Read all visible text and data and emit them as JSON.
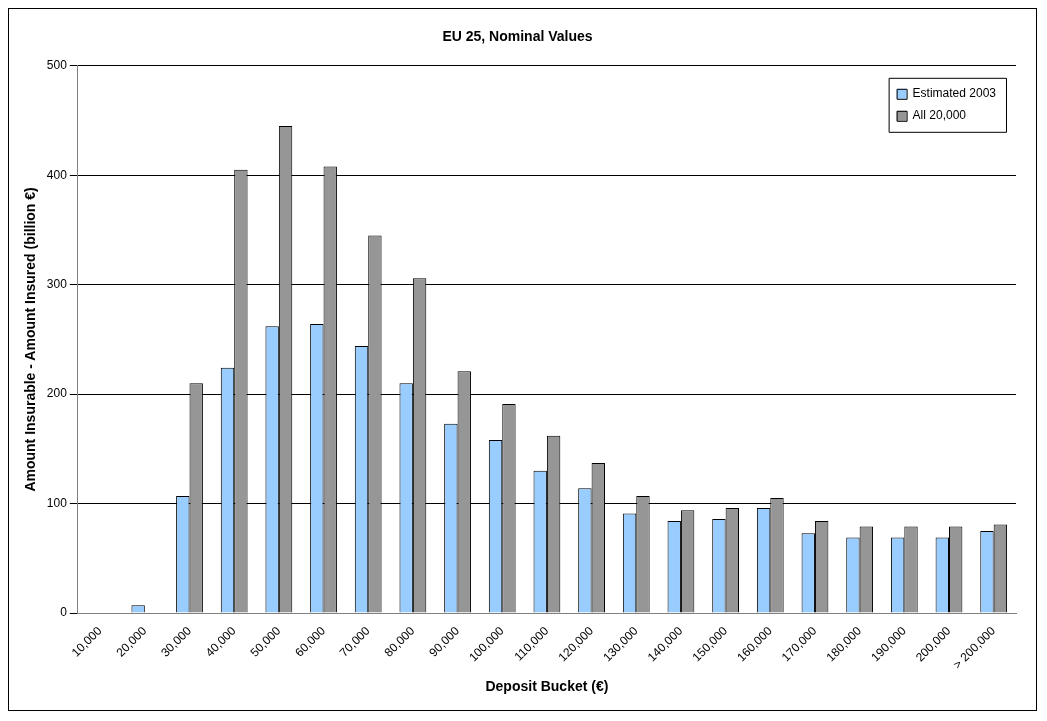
{
  "chart_data": {
    "type": "bar",
    "title": "EU 25, Nominal Values",
    "xlabel": "Deposit Bucket (€)",
    "ylabel": "Amount Insurable - Amount Insured (billion €)",
    "categories": [
      "10,000",
      "20,000",
      "30,000",
      "40,000",
      "50,000",
      "60,000",
      "70,000",
      "80,000",
      "90,000",
      "100,000",
      "110,000",
      "120,000",
      "130,000",
      "140,000",
      "150,000",
      "160,000",
      "170,000",
      "180,000",
      "190,000",
      "200,000",
      "> 200,000"
    ],
    "series": [
      {
        "name": "Estimated 2003",
        "color": "#99ccff",
        "values": [
          0,
          7,
          107,
          224,
          262,
          264,
          244,
          210,
          173,
          158,
          130,
          114,
          91,
          84,
          86,
          96,
          73,
          69,
          69,
          69,
          75
        ]
      },
      {
        "name": "All 20,000",
        "color": "#969696",
        "values": [
          0,
          0,
          210,
          405,
          445,
          408,
          345,
          306,
          221,
          191,
          162,
          137,
          107,
          94,
          96,
          105,
          84,
          79,
          79,
          79,
          81
        ]
      }
    ],
    "ylim": [
      0,
      500
    ],
    "yticks": [
      0,
      100,
      200,
      300,
      400,
      500
    ],
    "grid": "y",
    "legend": "top right"
  }
}
